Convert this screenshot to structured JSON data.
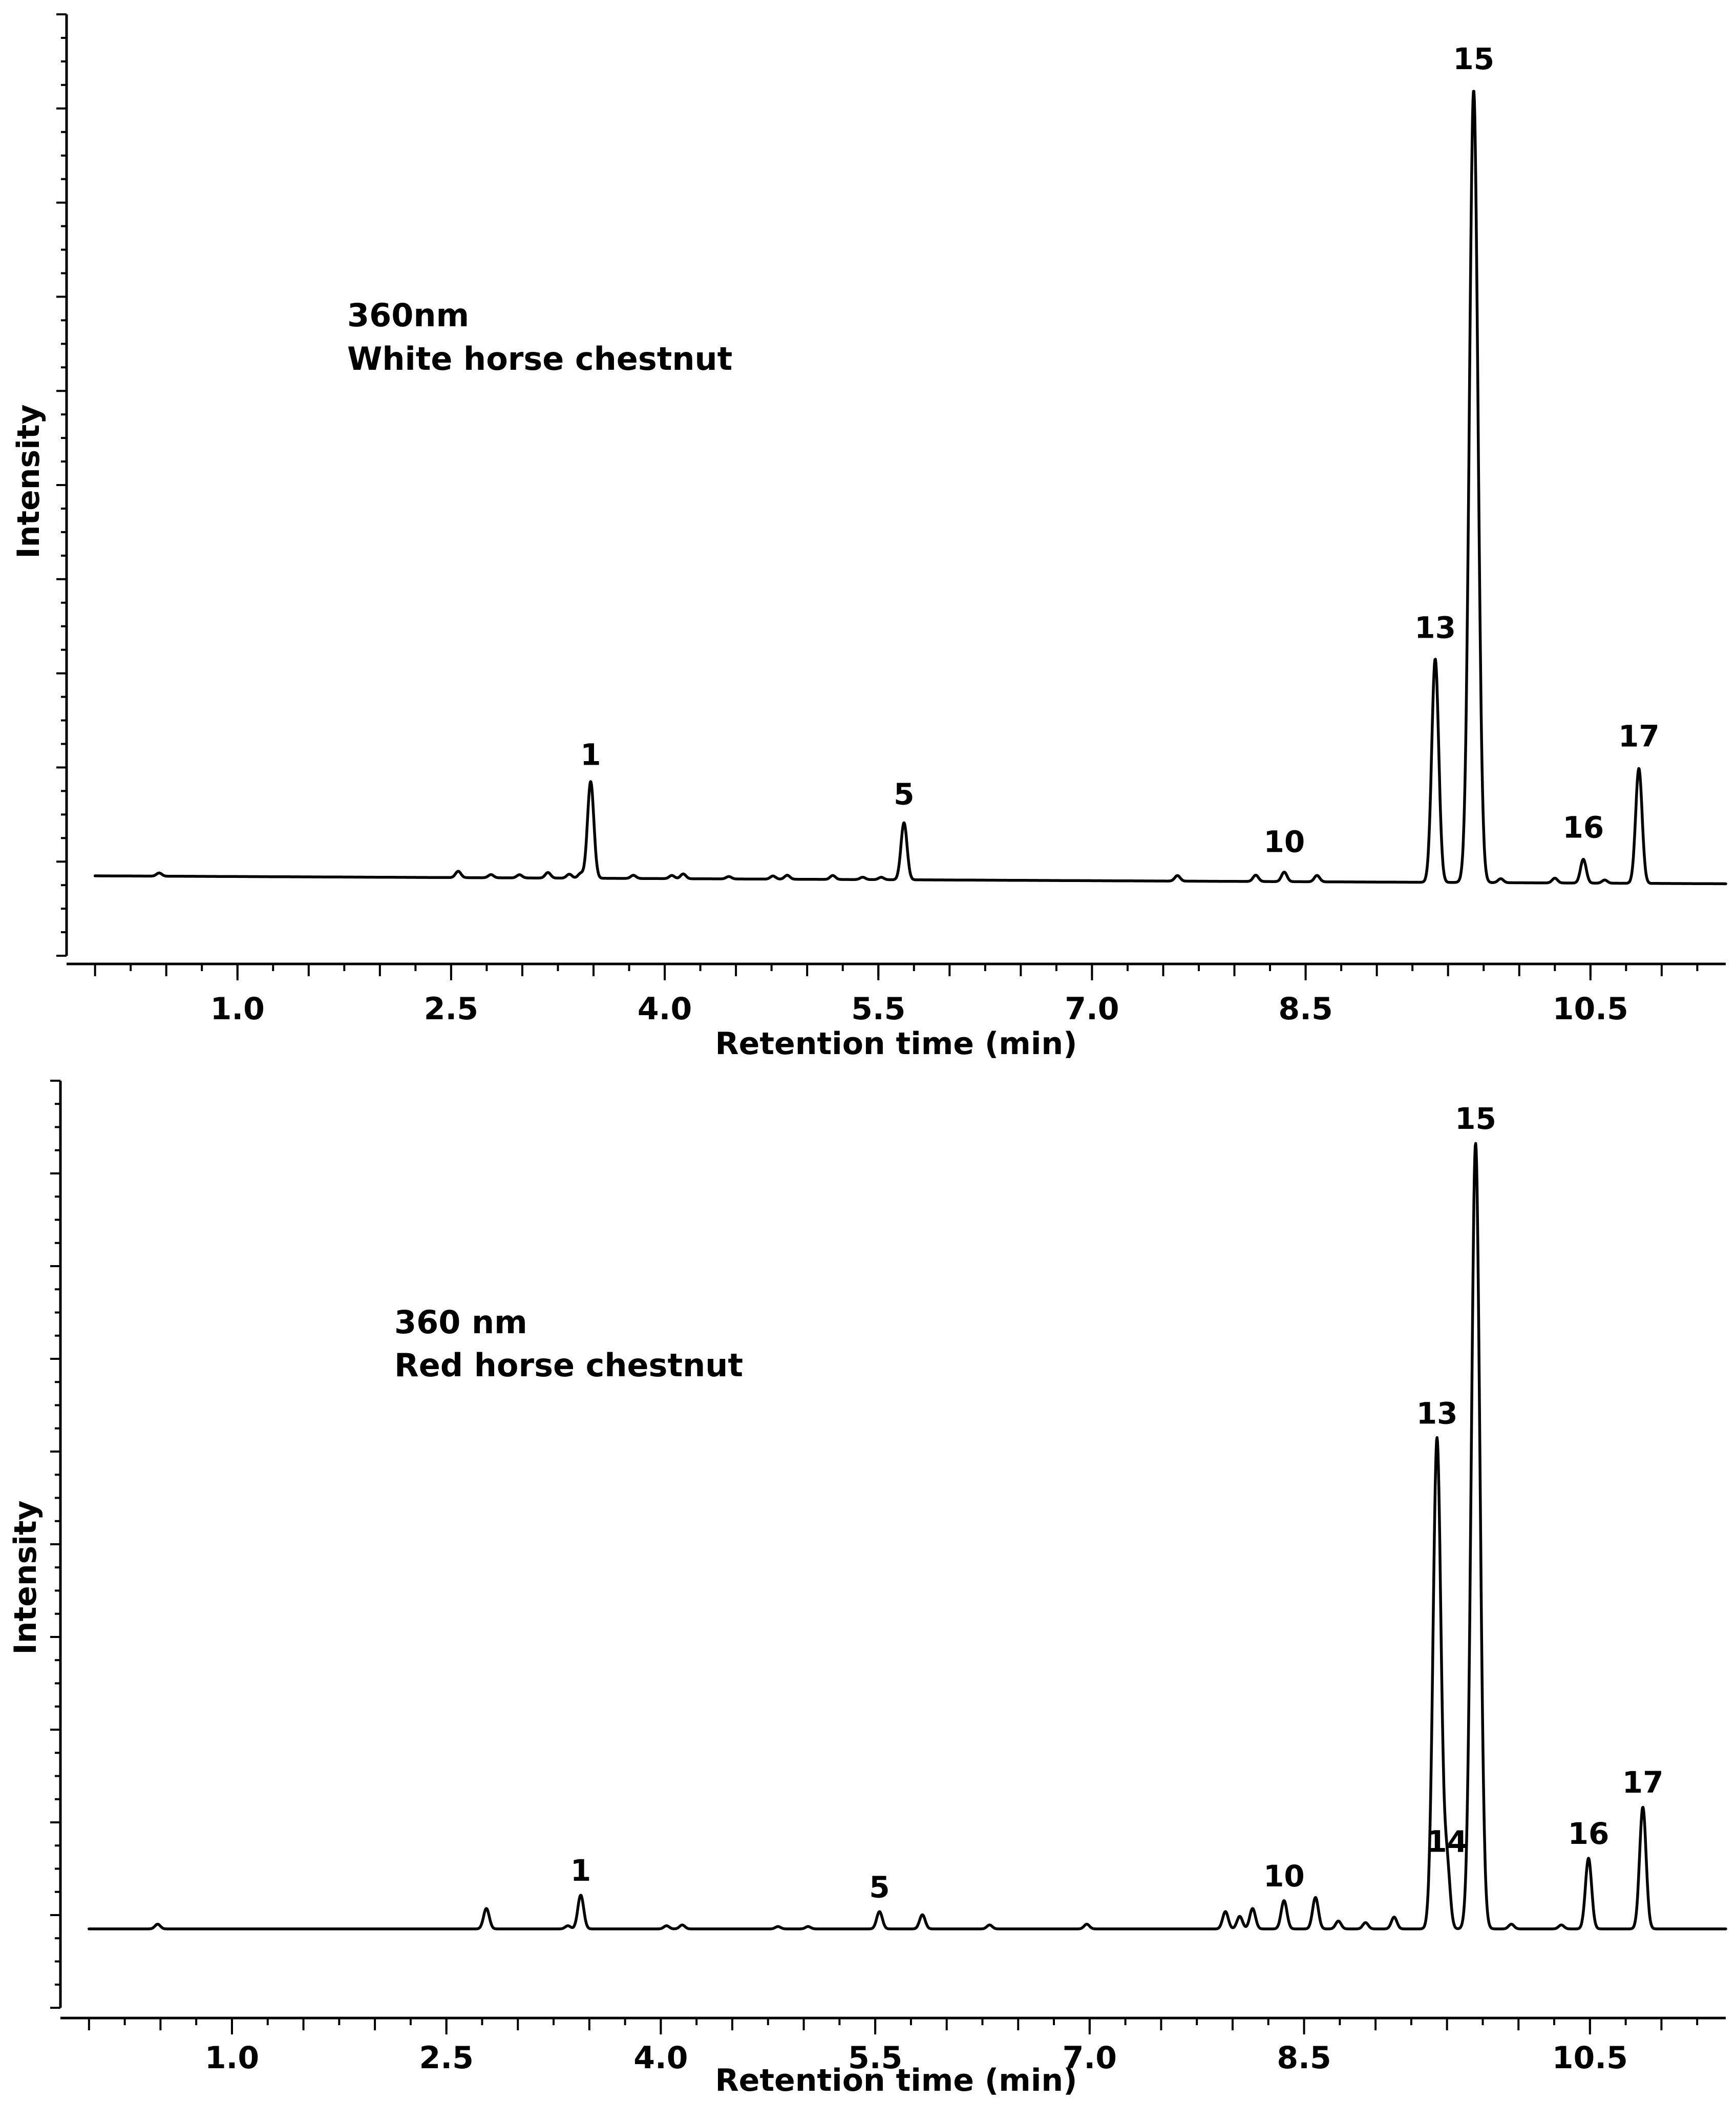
{
  "chart_data": [
    {
      "type": "line",
      "title": "",
      "annotation": [
        "360nm",
        "White horse chestnut"
      ],
      "xlabel": "Retention time (min)",
      "ylabel": "Intensity",
      "xlim": [
        -0.2,
        11.45
      ],
      "ylim": [
        -0.12,
        1.1
      ],
      "x_ticks": [
        "1.0",
        "2.5",
        "4.0",
        "5.5",
        "7.0",
        "8.5",
        "10.5"
      ],
      "x_tick_values": [
        1.0,
        2.5,
        4.0,
        5.5,
        7.0,
        8.5,
        10.5
      ],
      "baseline": 0,
      "baseline_end": -0.01,
      "grid": false,
      "peaks": [
        {
          "label": "",
          "x": 0.45,
          "y": 0.004
        },
        {
          "label": "",
          "x": 2.55,
          "y": 0.008
        },
        {
          "label": "",
          "x": 2.78,
          "y": 0.004
        },
        {
          "label": "",
          "x": 2.98,
          "y": 0.004
        },
        {
          "label": "",
          "x": 3.18,
          "y": 0.007
        },
        {
          "label": "",
          "x": 3.33,
          "y": 0.005
        },
        {
          "label": "",
          "x": 3.41,
          "y": 0.006
        },
        {
          "label": "1",
          "x": 3.48,
          "y": 0.122
        },
        {
          "label": "",
          "x": 3.78,
          "y": 0.004
        },
        {
          "label": "",
          "x": 4.05,
          "y": 0.004
        },
        {
          "label": "",
          "x": 4.13,
          "y": 0.006
        },
        {
          "label": "",
          "x": 4.45,
          "y": 0.003
        },
        {
          "label": "",
          "x": 4.76,
          "y": 0.004
        },
        {
          "label": "",
          "x": 4.86,
          "y": 0.005
        },
        {
          "label": "",
          "x": 5.18,
          "y": 0.005
        },
        {
          "label": "",
          "x": 5.39,
          "y": 0.003
        },
        {
          "label": "",
          "x": 5.52,
          "y": 0.003
        },
        {
          "label": "5",
          "x": 5.68,
          "y": 0.072
        },
        {
          "label": "",
          "x": 7.6,
          "y": 0.007
        },
        {
          "label": "",
          "x": 8.15,
          "y": 0.008
        },
        {
          "label": "10",
          "x": 8.35,
          "y": 0.012
        },
        {
          "label": "",
          "x": 8.58,
          "y": 0.008
        },
        {
          "label": "13",
          "x": 9.41,
          "y": 0.282
        },
        {
          "label": "15",
          "x": 9.68,
          "y": 1.0
        },
        {
          "label": "",
          "x": 9.87,
          "y": 0.005
        },
        {
          "label": "",
          "x": 10.25,
          "y": 0.006
        },
        {
          "label": "16",
          "x": 10.45,
          "y": 0.03
        },
        {
          "label": "",
          "x": 10.6,
          "y": 0.004
        },
        {
          "label": "17",
          "x": 10.84,
          "y": 0.145
        }
      ]
    },
    {
      "type": "line",
      "title": "",
      "annotation": [
        "360 nm",
        "Red horse chestnut"
      ],
      "xlabel": "Retention time (min)",
      "ylabel": "Intensity",
      "xlim": [
        -0.2,
        11.45
      ],
      "ylim": [
        -0.12,
        1.1
      ],
      "x_ticks": [
        "1.0",
        "2.5",
        "4.0",
        "5.5",
        "7.0",
        "8.5",
        "10.5"
      ],
      "x_tick_values": [
        1.0,
        2.5,
        4.0,
        5.5,
        7.0,
        8.5,
        10.5
      ],
      "baseline": 0,
      "baseline_end": 0,
      "grid": false,
      "peaks": [
        {
          "label": "",
          "x": 0.48,
          "y": 0.006
        },
        {
          "label": "",
          "x": 2.78,
          "y": 0.026
        },
        {
          "label": "",
          "x": 3.35,
          "y": 0.004
        },
        {
          "label": "1",
          "x": 3.44,
          "y": 0.043
        },
        {
          "label": "",
          "x": 4.04,
          "y": 0.004
        },
        {
          "label": "",
          "x": 4.15,
          "y": 0.005
        },
        {
          "label": "",
          "x": 4.82,
          "y": 0.003
        },
        {
          "label": "",
          "x": 5.03,
          "y": 0.003
        },
        {
          "label": "5",
          "x": 5.53,
          "y": 0.022
        },
        {
          "label": "",
          "x": 5.83,
          "y": 0.018
        },
        {
          "label": "",
          "x": 6.3,
          "y": 0.005
        },
        {
          "label": "",
          "x": 6.98,
          "y": 0.006
        },
        {
          "label": "",
          "x": 7.95,
          "y": 0.022
        },
        {
          "label": "",
          "x": 8.05,
          "y": 0.016
        },
        {
          "label": "",
          "x": 8.14,
          "y": 0.026
        },
        {
          "label": "10",
          "x": 8.36,
          "y": 0.036
        },
        {
          "label": "",
          "x": 8.58,
          "y": 0.04
        },
        {
          "label": "",
          "x": 8.74,
          "y": 0.01
        },
        {
          "label": "",
          "x": 8.93,
          "y": 0.008
        },
        {
          "label": "",
          "x": 9.13,
          "y": 0.015
        },
        {
          "label": "13",
          "x": 9.43,
          "y": 0.625
        },
        {
          "label": "14",
          "x": 9.5,
          "y": 0.08
        },
        {
          "label": "15",
          "x": 9.7,
          "y": 1.0
        },
        {
          "label": "",
          "x": 9.95,
          "y": 0.006
        },
        {
          "label": "",
          "x": 10.3,
          "y": 0.005
        },
        {
          "label": "16",
          "x": 10.49,
          "y": 0.09
        },
        {
          "label": "17",
          "x": 10.87,
          "y": 0.155
        }
      ]
    }
  ]
}
